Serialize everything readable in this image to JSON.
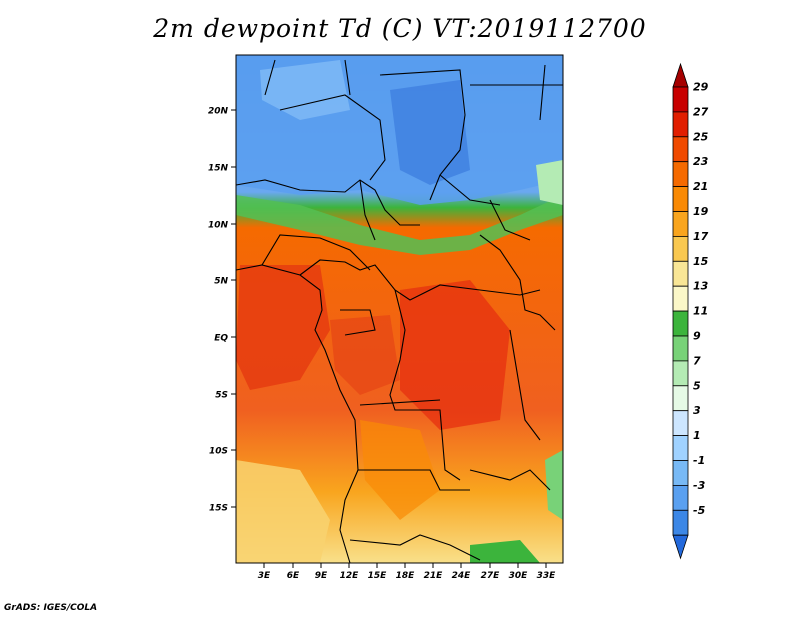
{
  "title": "2m dewpoint Td (C) VT:2019112700",
  "credit": "GrADS: IGES/COLA",
  "map": {
    "lat_axis": {
      "labels": [
        "20N",
        "15N",
        "10N",
        "5N",
        "EQ",
        "5S",
        "10S",
        "15S"
      ]
    },
    "lon_axis": {
      "labels": [
        "3E",
        "6E",
        "9E",
        "12E",
        "15E",
        "18E",
        "21E",
        "24E",
        "27E",
        "30E",
        "33E"
      ]
    }
  },
  "colorbar": {
    "labels": [
      "29",
      "27",
      "25",
      "23",
      "21",
      "19",
      "17",
      "15",
      "13",
      "11",
      "9",
      "7",
      "5",
      "3",
      "1",
      "-1",
      "-3",
      "-5"
    ],
    "colors": [
      "#a50000",
      "#c80000",
      "#e11e00",
      "#f04a00",
      "#f56a00",
      "#f98a05",
      "#f9a51e",
      "#f9c850",
      "#f9e696",
      "#fbf7c8",
      "#3cb43c",
      "#78d278",
      "#b4ebb4",
      "#e6fae6",
      "#cde6ff",
      "#a0d2ff",
      "#78b9f5",
      "#5aa0f0",
      "#3c87e6",
      "#2369dc"
    ]
  }
}
